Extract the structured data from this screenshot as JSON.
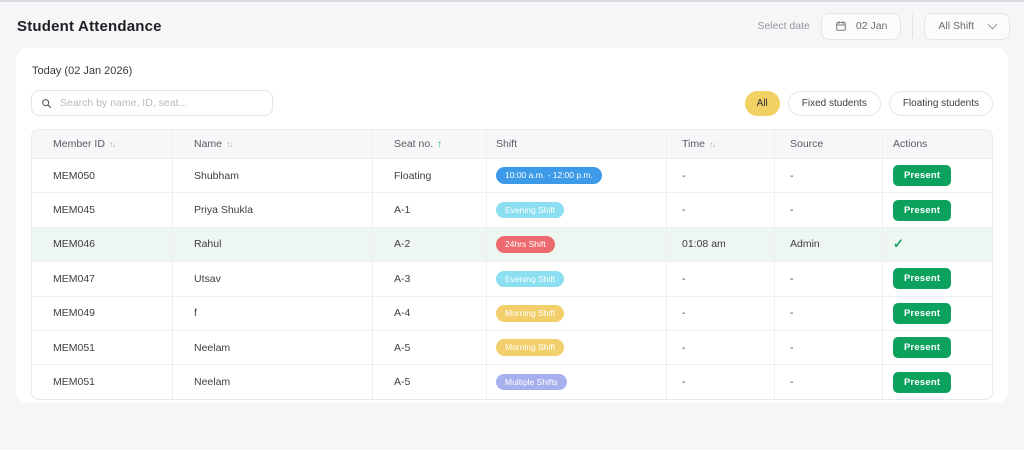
{
  "header": {
    "title": "Student Attendance",
    "select_date_label": "Select date",
    "date_value": "02 Jan",
    "shift_filter_value": "All Shift"
  },
  "card": {
    "today_label": "Today (02 Jan 2026)",
    "search": {
      "placeholder": "Search by name, ID, seat..."
    },
    "filters": [
      {
        "label": "All",
        "active": true
      },
      {
        "label": "Fixed students",
        "active": false
      },
      {
        "label": "Floating students",
        "active": false
      }
    ]
  },
  "table": {
    "columns": [
      {
        "label": "Member ID",
        "sort": "both"
      },
      {
        "label": "Name",
        "sort": "both"
      },
      {
        "label": "Seat no.",
        "sort": "asc"
      },
      {
        "label": "Shift",
        "sort": "none"
      },
      {
        "label": "Time",
        "sort": "both"
      },
      {
        "label": "Source",
        "sort": "none"
      },
      {
        "label": "Actions",
        "sort": "none"
      }
    ],
    "present_label": "Present",
    "rows": [
      {
        "member_id": "MEM050",
        "name": "Shubham",
        "seat": "Floating",
        "shift": {
          "label": "10:00 a.m. - 12:00 p.m.",
          "type": "time-range"
        },
        "time": "-",
        "source": "-",
        "action": "present",
        "highlighted": false
      },
      {
        "member_id": "MEM045",
        "name": "Priya Shukla",
        "seat": "A-1",
        "shift": {
          "label": "Evening Shift",
          "type": "evening"
        },
        "time": "-",
        "source": "-",
        "action": "present",
        "highlighted": false
      },
      {
        "member_id": "MEM046",
        "name": "Rahul",
        "seat": "A-2",
        "shift": {
          "label": "24hrs Shift",
          "type": "24hrs"
        },
        "time": "01:08 am",
        "source": "Admin",
        "action": "checked",
        "highlighted": true
      },
      {
        "member_id": "MEM047",
        "name": "Utsav",
        "seat": "A-3",
        "shift": {
          "label": "Evening Shift",
          "type": "evening"
        },
        "time": "-",
        "source": "-",
        "action": "present",
        "highlighted": false
      },
      {
        "member_id": "MEM049",
        "name": "f",
        "seat": "A-4",
        "shift": {
          "label": "Morning Shift",
          "type": "morning"
        },
        "time": "-",
        "source": "-",
        "action": "present",
        "highlighted": false
      },
      {
        "member_id": "MEM051",
        "name": "Neelam",
        "seat": "A-5",
        "shift": {
          "label": "Morning Shift",
          "type": "morning"
        },
        "time": "-",
        "source": "-",
        "action": "present",
        "highlighted": false
      },
      {
        "member_id": "MEM051",
        "name": "Neelam",
        "seat": "A-5",
        "shift": {
          "label": "Multiple Shifts",
          "type": "multiple"
        },
        "time": "-",
        "source": "-",
        "action": "present",
        "highlighted": false
      }
    ]
  },
  "colors": {
    "accent_yellow": "#F1D164",
    "present_green": "#0CA25E",
    "check_green": "#17A05E",
    "seat_sort_green": "#1EA564",
    "row_highlight": "#EDF6F1",
    "badges": {
      "time-range": "#3D9AE8",
      "evening": "#8BDFF0",
      "24hrs": "#ED6B6E",
      "morning": "#F2CF6B",
      "multiple": "#A7B0EE"
    }
  }
}
